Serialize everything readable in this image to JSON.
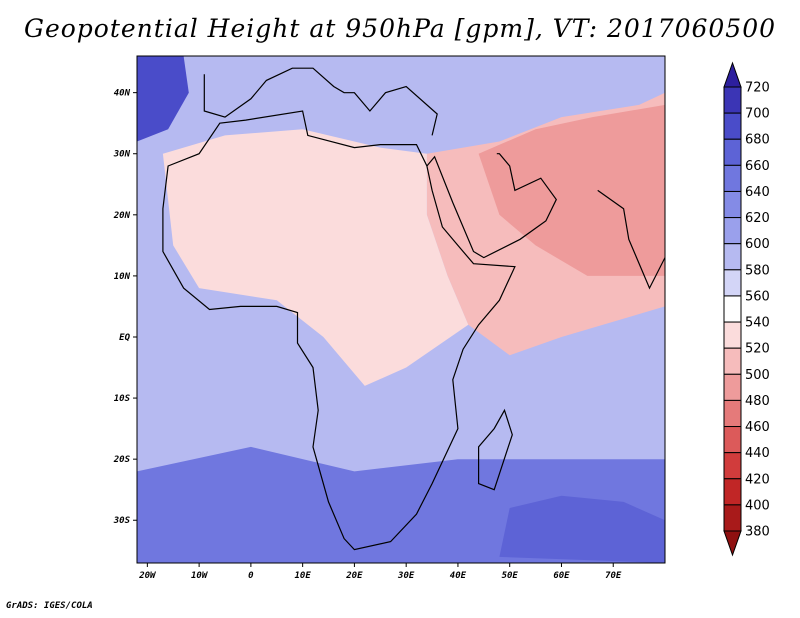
{
  "title": "Geopotential Height at 950hPa [gpm], VT: 2017060500",
  "credit": "GrADS: IGES/COLA",
  "map": {
    "projection": "latlon",
    "lon_range": [
      -22,
      80
    ],
    "lat_range": [
      -37,
      46
    ],
    "lon_ticks": [
      {
        "value": -20,
        "label": "20W"
      },
      {
        "value": -10,
        "label": "10W"
      },
      {
        "value": 0,
        "label": "0"
      },
      {
        "value": 10,
        "label": "10E"
      },
      {
        "value": 20,
        "label": "20E"
      },
      {
        "value": 30,
        "label": "30E"
      },
      {
        "value": 40,
        "label": "40E"
      },
      {
        "value": 50,
        "label": "50E"
      },
      {
        "value": 60,
        "label": "60E"
      },
      {
        "value": 70,
        "label": "70E"
      }
    ],
    "lat_ticks": [
      {
        "value": 40,
        "label": "40N"
      },
      {
        "value": 30,
        "label": "30N"
      },
      {
        "value": 20,
        "label": "20N"
      },
      {
        "value": 10,
        "label": "10N"
      },
      {
        "value": 0,
        "label": "EQ"
      },
      {
        "value": -10,
        "label": "10S"
      },
      {
        "value": -20,
        "label": "20S"
      },
      {
        "value": -30,
        "label": "30S"
      }
    ]
  },
  "colorbar": {
    "levels": [
      720,
      700,
      680,
      660,
      640,
      620,
      600,
      580,
      560,
      540,
      520,
      500,
      480,
      460,
      440,
      420,
      400,
      380
    ],
    "colors": [
      "#2d1f9e",
      "#3b35b5",
      "#4a4cc9",
      "#5d63d6",
      "#7077df",
      "#848be6",
      "#9aa0ec",
      "#b6baf1",
      "#d3d5f7",
      "#ffffff",
      "#fbdcdc",
      "#f6bcbc",
      "#ee9b9b",
      "#e57a7a",
      "#dc5a5a",
      "#d13c3c",
      "#c12626",
      "#a81a1a",
      "#8f1010"
    ]
  },
  "field_regions": [
    {
      "name": "arabia-india-high-heights",
      "color": "#f6bcbc",
      "lonlat": [
        [
          34,
          30
        ],
        [
          48,
          32
        ],
        [
          60,
          36
        ],
        [
          75,
          38
        ],
        [
          80,
          40
        ],
        [
          80,
          5
        ],
        [
          60,
          0
        ],
        [
          50,
          -3
        ],
        [
          42,
          2
        ],
        [
          38,
          10
        ],
        [
          34,
          20
        ]
      ]
    },
    {
      "name": "north-africa-pink",
      "color": "#fbdcdc",
      "lonlat": [
        [
          -17,
          30
        ],
        [
          -5,
          33
        ],
        [
          10,
          34
        ],
        [
          25,
          31
        ],
        [
          34,
          30
        ],
        [
          34,
          20
        ],
        [
          38,
          10
        ],
        [
          42,
          2
        ],
        [
          30,
          -5
        ],
        [
          22,
          -8
        ],
        [
          14,
          0
        ],
        [
          5,
          6
        ],
        [
          -10,
          8
        ],
        [
          -15,
          15
        ]
      ]
    },
    {
      "name": "pakistan-low",
      "color": "#dc5a5a",
      "lonlat": [
        [
          62,
          30
        ],
        [
          66,
          34
        ],
        [
          72,
          36
        ],
        [
          78,
          33
        ],
        [
          80,
          30
        ],
        [
          80,
          22
        ],
        [
          74,
          22
        ],
        [
          66,
          25
        ]
      ]
    },
    {
      "name": "pakistan-core",
      "color": "#c12626",
      "lonlat": [
        [
          67,
          29
        ],
        [
          70,
          33
        ],
        [
          74,
          32
        ],
        [
          74,
          28
        ],
        [
          70,
          26
        ]
      ]
    },
    {
      "name": "east-of-arabia",
      "color": "#ee9b9b",
      "lonlat": [
        [
          44,
          30
        ],
        [
          55,
          34
        ],
        [
          66,
          36
        ],
        [
          80,
          38
        ],
        [
          80,
          10
        ],
        [
          65,
          10
        ],
        [
          55,
          15
        ],
        [
          48,
          20
        ]
      ]
    },
    {
      "name": "south-atlantic-low",
      "color": "#c12626",
      "lonlat": [
        [
          -18,
          -37
        ],
        [
          -14,
          -32
        ],
        [
          -8,
          -31
        ],
        [
          -2,
          -34
        ],
        [
          0,
          -37
        ]
      ]
    },
    {
      "name": "south-atlantic-low-inner",
      "color": "#8f1010",
      "lonlat": [
        [
          -14,
          -37
        ],
        [
          -10,
          -34
        ],
        [
          -5,
          -35
        ],
        [
          -3,
          -37
        ]
      ]
    },
    {
      "name": "southern-ocean-blue",
      "color": "#7077df",
      "lonlat": [
        [
          -22,
          -22
        ],
        [
          0,
          -18
        ],
        [
          20,
          -22
        ],
        [
          40,
          -20
        ],
        [
          80,
          -20
        ],
        [
          80,
          -37
        ],
        [
          -22,
          -37
        ]
      ]
    },
    {
      "name": "southern-ocean-deep",
      "color": "#5d63d6",
      "lonlat": [
        [
          50,
          -28
        ],
        [
          60,
          -26
        ],
        [
          72,
          -27
        ],
        [
          80,
          -30
        ],
        [
          80,
          -37
        ],
        [
          48,
          -36
        ]
      ]
    },
    {
      "name": "azores-high",
      "color": "#4a4cc9",
      "lonlat": [
        [
          -22,
          46
        ],
        [
          -13,
          46
        ],
        [
          -12,
          40
        ],
        [
          -16,
          34
        ],
        [
          -22,
          32
        ]
      ]
    }
  ]
}
